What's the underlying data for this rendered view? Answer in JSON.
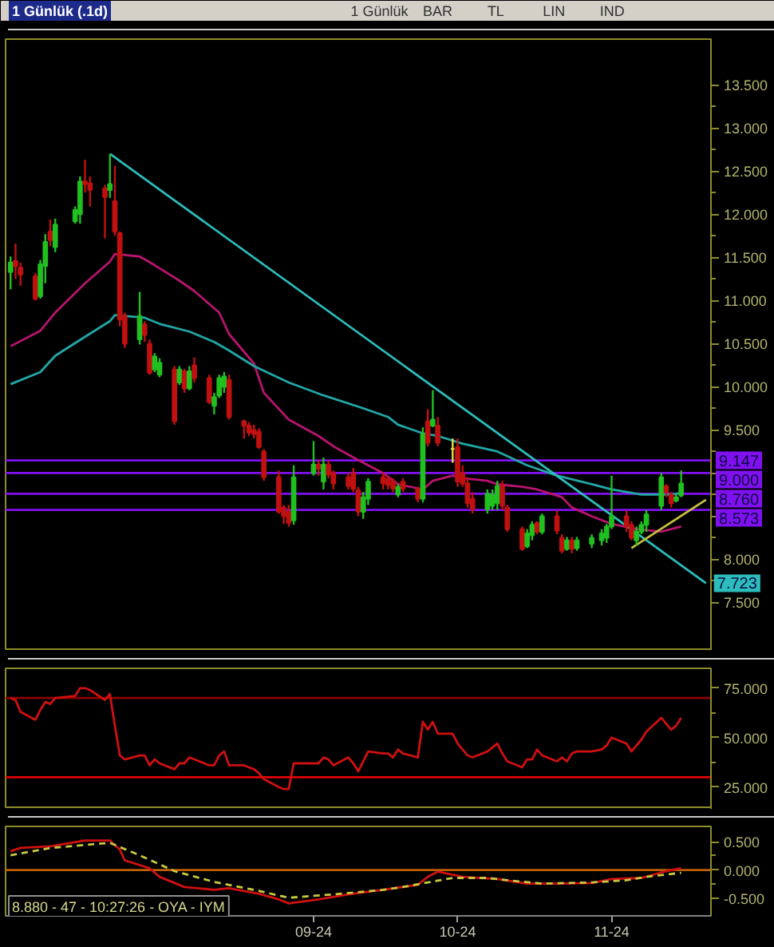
{
  "chart_data": [
    {
      "type": "candlestick",
      "title": "1 Günlük (.1d)",
      "annotations": [
        "1 Günlük",
        "BAR",
        "TL",
        "LIN",
        "IND"
      ],
      "x": [
        "2024-07-03",
        "2024-07-04",
        "2024-07-05",
        "2024-07-08",
        "2024-07-09",
        "2024-07-10",
        "2024-07-11",
        "2024-07-12",
        "2024-07-16",
        "2024-07-17",
        "2024-07-18",
        "2024-07-19",
        "2024-07-22",
        "2024-07-23",
        "2024-07-24",
        "2024-07-25",
        "2024-07-26",
        "2024-07-29",
        "2024-07-30",
        "2024-07-31",
        "2024-08-01",
        "2024-08-02",
        "2024-08-05",
        "2024-08-06",
        "2024-08-07",
        "2024-08-08",
        "2024-08-09",
        "2024-08-12",
        "2024-08-13",
        "2024-08-14",
        "2024-08-15",
        "2024-08-16",
        "2024-08-19",
        "2024-08-20",
        "2024-08-21",
        "2024-08-22",
        "2024-08-23",
        "2024-08-26",
        "2024-08-27",
        "2024-08-28",
        "2024-08-29",
        "2024-09-02",
        "2024-09-03",
        "2024-09-04",
        "2024-09-05",
        "2024-09-06",
        "2024-09-09",
        "2024-09-10",
        "2024-09-11",
        "2024-09-12",
        "2024-09-13",
        "2024-09-16",
        "2024-09-17",
        "2024-09-18",
        "2024-09-19",
        "2024-09-20",
        "2024-09-23",
        "2024-09-24",
        "2024-09-25",
        "2024-09-26",
        "2024-09-27",
        "2024-09-30",
        "2024-10-01",
        "2024-10-02",
        "2024-10-03",
        "2024-10-04",
        "2024-10-07",
        "2024-10-08",
        "2024-10-09",
        "2024-10-10",
        "2024-10-11",
        "2024-10-14",
        "2024-10-15",
        "2024-10-16",
        "2024-10-17",
        "2024-10-18",
        "2024-10-21",
        "2024-10-22",
        "2024-10-23",
        "2024-10-24",
        "2024-10-25",
        "2024-10-28",
        "2024-10-30",
        "2024-10-31",
        "2024-11-01",
        "2024-11-04",
        "2024-11-05",
        "2024-11-06",
        "2024-11-07",
        "2024-11-08",
        "2024-11-11",
        "2024-11-12",
        "2024-11-13",
        "2024-11-14",
        "2024-11-15"
      ],
      "ohlc": [
        [
          11.33,
          11.51,
          11.13,
          11.44
        ],
        [
          11.46,
          11.66,
          11.25,
          11.4
        ],
        [
          11.38,
          11.44,
          11.17,
          11.3
        ],
        [
          11.28,
          11.32,
          11.0,
          11.02
        ],
        [
          11.05,
          11.47,
          11.02,
          11.42
        ],
        [
          11.4,
          11.77,
          11.2,
          11.68
        ],
        [
          11.8,
          11.94,
          11.63,
          11.7
        ],
        [
          11.62,
          11.95,
          11.56,
          11.88
        ],
        [
          11.92,
          12.09,
          11.89,
          12.05
        ],
        [
          12.0,
          12.44,
          11.89,
          12.38
        ],
        [
          12.38,
          12.63,
          12.25,
          12.35
        ],
        [
          12.36,
          12.44,
          12.09,
          12.28
        ],
        [
          12.3,
          12.34,
          11.72,
          12.2
        ],
        [
          12.28,
          12.7,
          12.19,
          12.35
        ],
        [
          12.15,
          12.56,
          11.75,
          11.8
        ],
        [
          11.78,
          11.8,
          10.7,
          10.78
        ],
        [
          10.82,
          10.86,
          10.45,
          10.5
        ],
        [
          10.55,
          11.1,
          10.49,
          10.82
        ],
        [
          10.72,
          10.76,
          10.52,
          10.6
        ],
        [
          10.5,
          10.55,
          10.14,
          10.16
        ],
        [
          10.2,
          10.39,
          10.17,
          10.35
        ],
        [
          10.14,
          10.33,
          10.11,
          10.28
        ],
        [
          10.2,
          10.24,
          9.56,
          9.6
        ],
        [
          10.05,
          10.24,
          10.02,
          10.2
        ],
        [
          10.18,
          10.21,
          9.93,
          9.98
        ],
        [
          9.98,
          10.24,
          9.96,
          10.18
        ],
        [
          10.25,
          10.34,
          10.05,
          10.1
        ],
        [
          10.1,
          10.14,
          9.8,
          9.82
        ],
        [
          9.78,
          9.93,
          9.68,
          9.88
        ],
        [
          9.9,
          10.14,
          9.87,
          10.1
        ],
        [
          10.0,
          10.17,
          9.93,
          10.12
        ],
        [
          10.08,
          10.14,
          9.62,
          9.65
        ],
        [
          9.6,
          9.62,
          9.4,
          9.55
        ],
        [
          9.55,
          9.59,
          9.43,
          9.47
        ],
        [
          9.5,
          9.56,
          9.4,
          9.45
        ],
        [
          9.48,
          9.52,
          9.28,
          9.3
        ],
        [
          9.25,
          9.28,
          8.91,
          8.95
        ],
        [
          8.95,
          9.03,
          8.53,
          8.55
        ],
        [
          8.6,
          8.63,
          8.41,
          8.5
        ],
        [
          8.55,
          8.63,
          8.38,
          8.42
        ],
        [
          8.45,
          9.09,
          8.4,
          8.95
        ],
        [
          9.0,
          9.37,
          8.97,
          9.1
        ],
        [
          9.1,
          9.15,
          8.97,
          9.05
        ],
        [
          8.9,
          9.18,
          8.81,
          9.1
        ],
        [
          9.1,
          9.15,
          8.94,
          8.98
        ],
        [
          9.0,
          9.03,
          8.81,
          8.88
        ],
        [
          8.95,
          9.0,
          8.81,
          8.85
        ],
        [
          9.0,
          9.06,
          8.78,
          8.82
        ],
        [
          8.8,
          8.84,
          8.5,
          8.55
        ],
        [
          8.55,
          8.78,
          8.47,
          8.72
        ],
        [
          8.7,
          8.94,
          8.63,
          8.9
        ],
        [
          8.95,
          9.0,
          8.81,
          8.88
        ],
        [
          8.93,
          8.97,
          8.81,
          8.86
        ],
        [
          8.9,
          8.94,
          8.78,
          8.82
        ],
        [
          8.75,
          8.87,
          8.72,
          8.84
        ],
        [
          8.9,
          8.94,
          8.78,
          8.82
        ],
        [
          8.82,
          8.84,
          8.66,
          8.7
        ],
        [
          8.7,
          9.53,
          8.66,
          9.45
        ],
        [
          9.6,
          9.74,
          9.31,
          9.35
        ],
        [
          9.55,
          9.96,
          9.53,
          9.62
        ],
        [
          9.55,
          9.65,
          9.31,
          9.35
        ],
        [
          9.28,
          9.4,
          9.12,
          9.28
        ],
        [
          9.3,
          9.4,
          8.84,
          8.9
        ],
        [
          9.0,
          9.09,
          8.84,
          8.88
        ],
        [
          8.88,
          8.94,
          8.6,
          8.65
        ],
        [
          8.7,
          8.78,
          8.53,
          8.58
        ],
        [
          8.58,
          8.81,
          8.53,
          8.76
        ],
        [
          8.62,
          8.81,
          8.57,
          8.75
        ],
        [
          8.65,
          8.91,
          8.57,
          8.85
        ],
        [
          8.85,
          8.91,
          8.57,
          8.62
        ],
        [
          8.6,
          8.63,
          8.32,
          8.35
        ],
        [
          8.35,
          8.38,
          8.1,
          8.12
        ],
        [
          8.15,
          8.35,
          8.13,
          8.3
        ],
        [
          8.28,
          8.44,
          8.22,
          8.4
        ],
        [
          8.42,
          8.44,
          8.29,
          8.32
        ],
        [
          8.32,
          8.53,
          8.29,
          8.5
        ],
        [
          8.5,
          8.57,
          8.29,
          8.33
        ],
        [
          8.25,
          8.29,
          8.07,
          8.1
        ],
        [
          8.12,
          8.26,
          8.1,
          8.22
        ],
        [
          8.22,
          8.26,
          8.07,
          8.12
        ],
        [
          8.13,
          8.26,
          8.1,
          8.22
        ],
        [
          8.18,
          8.29,
          8.13,
          8.25
        ],
        [
          8.22,
          8.35,
          8.16,
          8.3
        ],
        [
          8.25,
          8.41,
          8.19,
          8.38
        ],
        [
          8.38,
          8.97,
          8.35,
          8.5
        ],
        [
          8.5,
          8.57,
          8.32,
          8.38
        ],
        [
          8.4,
          8.44,
          8.22,
          8.25
        ],
        [
          8.22,
          8.38,
          8.16,
          8.32
        ],
        [
          8.32,
          8.44,
          8.29,
          8.4
        ],
        [
          8.4,
          8.57,
          8.32,
          8.52
        ],
        [
          8.62,
          9.0,
          8.57,
          8.95
        ],
        [
          8.85,
          8.87,
          8.72,
          8.78
        ],
        [
          8.75,
          8.78,
          8.6,
          8.65
        ],
        [
          8.68,
          8.75,
          8.66,
          8.72
        ],
        [
          8.74,
          9.03,
          8.72,
          8.88
        ]
      ],
      "colors": [
        "#20c020",
        "#c01010",
        "#c01010",
        "#c01010",
        "#20c020",
        "#20c020",
        "#c01010",
        "#20c020",
        "#20c020",
        "#20c020",
        "#c01010",
        "#c01010",
        "#c01010",
        "#20c020",
        "#c01010",
        "#c01010",
        "#c01010",
        "#20c020",
        "#c01010",
        "#c01010",
        "#20c020",
        "#20c020",
        "#c01010",
        "#20c020",
        "#c01010",
        "#20c020",
        "#c01010",
        "#c01010",
        "#20c020",
        "#20c020",
        "#20c020",
        "#c01010",
        "#c01010",
        "#c01010",
        "#c01010",
        "#c01010",
        "#c01010",
        "#c01010",
        "#c01010",
        "#c01010",
        "#20c020",
        "#20c020",
        "#c01010",
        "#20c020",
        "#c01010",
        "#c01010",
        "#c01010",
        "#c01010",
        "#c01010",
        "#20c020",
        "#20c020",
        "#c01010",
        "#c01010",
        "#c01010",
        "#20c020",
        "#c01010",
        "#c01010",
        "#20c020",
        "#c01010",
        "#20c020",
        "#c01010",
        "#e8e040",
        "#c01010",
        "#c01010",
        "#c01010",
        "#c01010",
        "#20c020",
        "#20c020",
        "#20c020",
        "#c01010",
        "#c01010",
        "#c01010",
        "#20c020",
        "#20c020",
        "#c01010",
        "#20c020",
        "#c01010",
        "#c01010",
        "#20c020",
        "#c01010",
        "#20c020",
        "#20c020",
        "#20c020",
        "#20c020",
        "#20c020",
        "#c01010",
        "#c01010",
        "#20c020",
        "#20c020",
        "#20c020",
        "#20c020",
        "#c01010",
        "#c01010",
        "#20c020",
        "#20c020"
      ],
      "series": [
        {
          "type": "line",
          "color": "#b8146e",
          "x": [
            "2024-07-03",
            "2024-07-09",
            "2024-07-12",
            "2024-07-18",
            "2024-07-23",
            "2024-07-24",
            "2024-07-29",
            "2024-08-01",
            "2024-08-06",
            "2024-08-09",
            "2024-08-14",
            "2024-08-16",
            "2024-08-21",
            "2024-08-23",
            "2024-08-28",
            "2024-09-03",
            "2024-09-06",
            "2024-09-11",
            "2024-09-16",
            "2024-09-19",
            "2024-09-24",
            "2024-09-26",
            "2024-09-30",
            "2024-10-02",
            "2024-10-07",
            "2024-10-09",
            "2024-10-14",
            "2024-10-17",
            "2024-10-22",
            "2024-10-24",
            "2024-10-28",
            "2024-11-01",
            "2024-11-06",
            "2024-11-11",
            "2024-11-13",
            "2024-11-15"
          ],
          "values": [
            10.47,
            10.65,
            10.86,
            11.2,
            11.45,
            11.54,
            11.51,
            11.41,
            11.23,
            11.11,
            10.86,
            10.61,
            10.27,
            9.93,
            9.62,
            9.43,
            9.31,
            9.15,
            9.0,
            8.87,
            8.81,
            8.91,
            8.97,
            8.94,
            8.91,
            8.87,
            8.84,
            8.81,
            8.72,
            8.6,
            8.5,
            8.41,
            8.35,
            8.32,
            8.35,
            8.38
          ]
        },
        {
          "type": "line",
          "color": "#22a6a6",
          "x": [
            "2024-07-03",
            "2024-07-09",
            "2024-07-12",
            "2024-07-18",
            "2024-07-23",
            "2024-07-24",
            "2024-07-30",
            "2024-08-02",
            "2024-08-08",
            "2024-08-13",
            "2024-08-16",
            "2024-08-21",
            "2024-08-28",
            "2024-09-04",
            "2024-09-11",
            "2024-09-17",
            "2024-09-19",
            "2024-09-24",
            "2024-09-27",
            "2024-10-02",
            "2024-10-09",
            "2024-10-15",
            "2024-10-21",
            "2024-10-28",
            "2024-11-01",
            "2024-11-07",
            "2024-11-13",
            "2024-11-15"
          ],
          "values": [
            10.03,
            10.17,
            10.36,
            10.58,
            10.76,
            10.83,
            10.8,
            10.73,
            10.64,
            10.52,
            10.42,
            10.24,
            10.05,
            9.9,
            9.77,
            9.65,
            9.56,
            9.46,
            9.43,
            9.34,
            9.25,
            9.09,
            8.97,
            8.87,
            8.81,
            8.75,
            8.75,
            8.77
          ]
        },
        {
          "type": "line",
          "color": "#2cbcbc",
          "x": [
            "2024-07-23",
            "2024-11-20"
          ],
          "values": [
            12.7,
            7.723
          ],
          "value_labels": [
            null,
            "7.723"
          ]
        },
        {
          "type": "line",
          "color": "#c8c040",
          "x": [
            "2024-11-05",
            "2024-11-20"
          ],
          "values": [
            8.13,
            8.69
          ]
        }
      ],
      "ref_lines": [
        {
          "axis": "y",
          "value": 9.147,
          "label": "9.147",
          "color": "#8010f0"
        },
        {
          "axis": "y",
          "value": 9.0,
          "label": "9.000",
          "color": "#8010f0"
        },
        {
          "axis": "y",
          "value": 8.76,
          "label": "8.760",
          "color": "#8010f0"
        },
        {
          "axis": "y",
          "value": 8.573,
          "label": "8.573",
          "color": "#8010f0"
        }
      ],
      "xlim": [
        "2024-07-02",
        "2024-11-21"
      ],
      "ylim": [
        6.94,
        14.03
      ],
      "yticks": [
        {
          "value": 7.5,
          "label": "7.500"
        },
        {
          "value": 8,
          "label": "8.000"
        },
        {
          "value": 8.5,
          "label": null
        },
        {
          "value": 9,
          "label": null
        },
        {
          "value": 9.5,
          "label": "9.500"
        },
        {
          "value": 10,
          "label": "10.000"
        },
        {
          "value": 10.5,
          "label": "10.500"
        },
        {
          "value": 11,
          "label": "11.000"
        },
        {
          "value": 11.5,
          "label": "11.500"
        },
        {
          "value": 12,
          "label": "12.000"
        },
        {
          "value": 12.5,
          "label": "12.500"
        },
        {
          "value": 13,
          "label": "13.000"
        },
        {
          "value": 13.5,
          "label": "13.500"
        }
      ],
      "tick_labels": "y"
    },
    {
      "type": "line",
      "color": "#d01010",
      "x": [
        "2024-07-03",
        "2024-07-04",
        "2024-07-05",
        "2024-07-08",
        "2024-07-09",
        "2024-07-10",
        "2024-07-11",
        "2024-07-12",
        "2024-07-16",
        "2024-07-17",
        "2024-07-18",
        "2024-07-19",
        "2024-07-22",
        "2024-07-23",
        "2024-07-24",
        "2024-07-25",
        "2024-07-26",
        "2024-07-29",
        "2024-07-30",
        "2024-07-31",
        "2024-08-01",
        "2024-08-02",
        "2024-08-05",
        "2024-08-06",
        "2024-08-07",
        "2024-08-08",
        "2024-08-09",
        "2024-08-12",
        "2024-08-13",
        "2024-08-14",
        "2024-08-15",
        "2024-08-16",
        "2024-08-19",
        "2024-08-20",
        "2024-08-21",
        "2024-08-22",
        "2024-08-23",
        "2024-08-26",
        "2024-08-27",
        "2024-08-28",
        "2024-08-29",
        "2024-09-02",
        "2024-09-03",
        "2024-09-04",
        "2024-09-05",
        "2024-09-06",
        "2024-09-09",
        "2024-09-10",
        "2024-09-11",
        "2024-09-12",
        "2024-09-13",
        "2024-09-16",
        "2024-09-17",
        "2024-09-18",
        "2024-09-19",
        "2024-09-20",
        "2024-09-23",
        "2024-09-24",
        "2024-09-25",
        "2024-09-26",
        "2024-09-27",
        "2024-09-30",
        "2024-10-01",
        "2024-10-02",
        "2024-10-03",
        "2024-10-04",
        "2024-10-07",
        "2024-10-08",
        "2024-10-09",
        "2024-10-10",
        "2024-10-11",
        "2024-10-14",
        "2024-10-15",
        "2024-10-16",
        "2024-10-17",
        "2024-10-18",
        "2024-10-21",
        "2024-10-22",
        "2024-10-23",
        "2024-10-24",
        "2024-10-25",
        "2024-10-28",
        "2024-10-30",
        "2024-10-31",
        "2024-11-01",
        "2024-11-04",
        "2024-11-05",
        "2024-11-06",
        "2024-11-07",
        "2024-11-08",
        "2024-11-11",
        "2024-11-12",
        "2024-11-13",
        "2024-11-14",
        "2024-11-15"
      ],
      "values": [
        70,
        69,
        63,
        59,
        64,
        68,
        67,
        70,
        71,
        75,
        75,
        74,
        69,
        72,
        56,
        41,
        39,
        41,
        41,
        36,
        39,
        37,
        34,
        37,
        37,
        40,
        39,
        36,
        36,
        41,
        43,
        36,
        36,
        35,
        34,
        32,
        29,
        25,
        24,
        24,
        37,
        37,
        37,
        40,
        39,
        36,
        40,
        37,
        33,
        38,
        43,
        42,
        42,
        40,
        44,
        42,
        40,
        58,
        54,
        58,
        52,
        52,
        47,
        44,
        41,
        40,
        43,
        45,
        47,
        42,
        38,
        35,
        39,
        39,
        44,
        41,
        38,
        40,
        38,
        42,
        43,
        43,
        44,
        46,
        50,
        47,
        43,
        46,
        49,
        53,
        60,
        57,
        54,
        56,
        60
      ],
      "ref_lines": [
        {
          "axis": "y",
          "value": 70,
          "color": "#8b0000"
        },
        {
          "axis": "y",
          "value": 30,
          "color": "#e00000"
        }
      ],
      "xlim": [
        "2024-07-02",
        "2024-11-21"
      ],
      "ylim": [
        14,
        85
      ],
      "yticks": [
        {
          "value": 25,
          "label": "25.000"
        },
        {
          "value": 50,
          "label": "50.000"
        },
        {
          "value": 75,
          "label": "75.000"
        }
      ],
      "tick_labels": "y"
    },
    {
      "type": "line",
      "annotations": [
        "8.880 - 47 - 10:27:26 - OYA - IYM"
      ],
      "series": [
        {
          "color": "#d01010",
          "x": [
            "2024-07-03",
            "2024-07-05",
            "2024-07-11",
            "2024-07-18",
            "2024-07-23",
            "2024-07-25",
            "2024-07-26",
            "2024-07-31",
            "2024-08-02",
            "2024-08-07",
            "2024-08-13",
            "2024-08-16",
            "2024-08-22",
            "2024-08-26",
            "2024-08-28",
            "2024-09-03",
            "2024-09-09",
            "2024-09-16",
            "2024-09-23",
            "2024-09-25",
            "2024-09-27",
            "2024-10-02",
            "2024-10-09",
            "2024-10-15",
            "2024-10-22",
            "2024-10-28",
            "2024-11-01",
            "2024-11-07",
            "2024-11-12",
            "2024-11-15"
          ],
          "values": [
            0.33,
            0.39,
            0.42,
            0.52,
            0.52,
            0.36,
            0.17,
            0.03,
            -0.12,
            -0.3,
            -0.35,
            -0.32,
            -0.42,
            -0.52,
            -0.59,
            -0.52,
            -0.43,
            -0.35,
            -0.26,
            -0.12,
            -0.03,
            -0.12,
            -0.16,
            -0.24,
            -0.24,
            -0.23,
            -0.16,
            -0.14,
            -0.02,
            0.03
          ]
        },
        {
          "color": "#c8c840",
          "line_style": "dashed",
          "x": [
            "2024-07-03",
            "2024-07-11",
            "2024-07-23",
            "2024-07-29",
            "2024-08-05",
            "2024-08-13",
            "2024-08-21",
            "2024-08-28",
            "2024-09-06",
            "2024-09-16",
            "2024-09-20",
            "2024-09-30",
            "2024-10-07",
            "2024-10-11",
            "2024-10-18",
            "2024-10-28",
            "2024-11-04",
            "2024-11-08",
            "2024-11-15"
          ],
          "values": [
            0.26,
            0.39,
            0.48,
            0.26,
            -0.02,
            -0.21,
            -0.35,
            -0.49,
            -0.43,
            -0.35,
            -0.3,
            -0.14,
            -0.14,
            -0.18,
            -0.24,
            -0.22,
            -0.18,
            -0.12,
            -0.05
          ]
        }
      ],
      "ref_lines": [
        {
          "axis": "y",
          "value": 0,
          "color": "#c06000"
        }
      ],
      "xlim": [
        "2024-07-02",
        "2024-11-21"
      ],
      "xticks": [
        {
          "value": "2024-09-02",
          "label": "09-24"
        },
        {
          "value": "2024-10-01",
          "label": "10-24"
        },
        {
          "value": "2024-11-01",
          "label": "11-24"
        }
      ],
      "ylim": [
        -0.81,
        0.77
      ],
      "yticks": [
        {
          "value": 0.5,
          "label": "0.500"
        },
        {
          "value": 0,
          "label": "0.000"
        },
        {
          "value": -0.5,
          "label": "-0.500"
        }
      ]
    }
  ]
}
